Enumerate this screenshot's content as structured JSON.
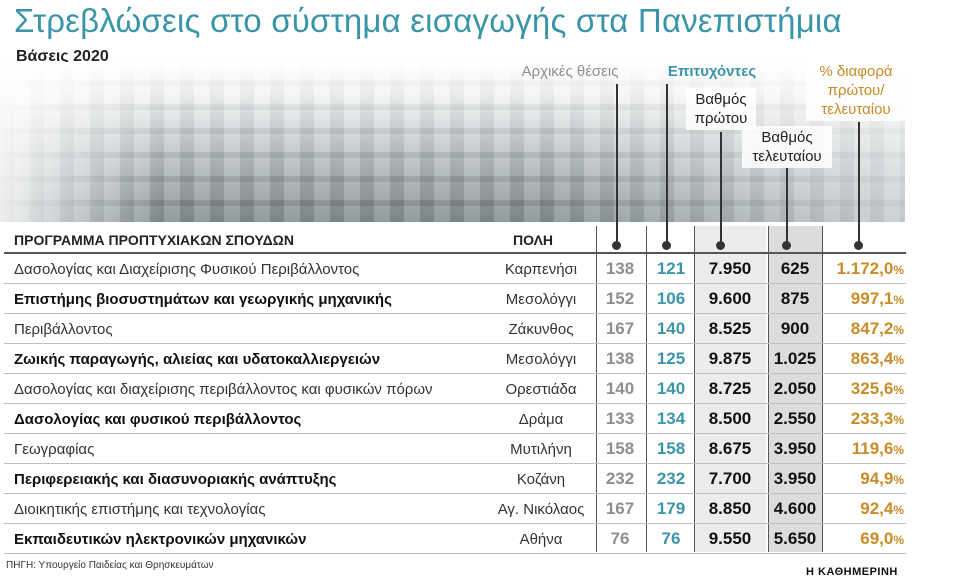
{
  "title": "Στρεβλώσεις στο σύστημα εισαγωγής στα Πανεπιστήμια",
  "subtitle": "Βάσεις 2020",
  "headers": {
    "initial_positions": "Αρχικές θέσεις",
    "successful": "Επιτυχόντες",
    "first_score": [
      "Βαθμός",
      "πρώτου"
    ],
    "last_score": [
      "Βαθμός",
      "τελευταίου"
    ],
    "diff_pct": [
      "% διαφορά",
      "πρώτου/",
      "τελευταίου"
    ],
    "program": "ΠΡΟΓΡΑΜΜΑ ΠΡΟΠΤΥΧΙΑΚΩΝ ΣΠΟΥΔΩΝ",
    "city": "ΠΟΛΗ"
  },
  "rows": [
    {
      "program": "Δασολογίας και Διαχείρισης Φυσικού Περιβάλλοντος",
      "city": "Καρπενήσι",
      "initial": "138",
      "successful": "121",
      "first": "7.950",
      "last": "625",
      "diff": "1.172,0",
      "bold": false
    },
    {
      "program": "Επιστήμης βιοσυστημάτων και γεωργικής μηχανικής",
      "city": "Μεσολόγγι",
      "initial": "152",
      "successful": "106",
      "first": "9.600",
      "last": "875",
      "diff": "997,1",
      "bold": true
    },
    {
      "program": "Περιβάλλοντος",
      "city": "Ζάκυνθος",
      "initial": "167",
      "successful": "140",
      "first": "8.525",
      "last": "900",
      "diff": "847,2",
      "bold": false
    },
    {
      "program": "Ζωικής παραγωγής, αλιείας και υδατοκαλλιεργειών",
      "city": "Μεσολόγγι",
      "initial": "138",
      "successful": "125",
      "first": "9.875",
      "last": "1.025",
      "diff": "863,4",
      "bold": true
    },
    {
      "program": "Δασολογίας και διαχείρισης περιβάλλοντος και φυσικών πόρων",
      "city": "Ορεστιάδα",
      "initial": "140",
      "successful": "140",
      "first": "8.725",
      "last": "2.050",
      "diff": "325,6",
      "bold": false
    },
    {
      "program": "Δασολογίας και φυσικού περιβάλλοντος",
      "city": "Δράμα",
      "initial": "133",
      "successful": "134",
      "first": "8.500",
      "last": "2.550",
      "diff": "233,3",
      "bold": true
    },
    {
      "program": "Γεωγραφίας",
      "city": "Μυτιλήνη",
      "initial": "158",
      "successful": "158",
      "first": "8.675",
      "last": "3.950",
      "diff": "119,6",
      "bold": false
    },
    {
      "program": "Περιφερειακής και διασυνοριακής ανάπτυξης",
      "city": "Κοζάνη",
      "initial": "232",
      "successful": "232",
      "first": "7.700",
      "last": "3.950",
      "diff": "94,9",
      "bold": true
    },
    {
      "program": "Διοικητικής επιστήμης και τεχνολογίας",
      "city": "Αγ. Νικόλαος",
      "initial": "167",
      "successful": "179",
      "first": "8.850",
      "last": "4.600",
      "diff": "92,4",
      "bold": false
    },
    {
      "program": "Εκπαιδευτικών ηλεκτρονικών μηχανικών",
      "city": "Αθήνα",
      "initial": "76",
      "successful": "76",
      "first": "9.550",
      "last": "5.650",
      "diff": "69,0",
      "bold": true
    }
  ],
  "percent_sign": "%",
  "source": "ΠΗΓΗ: Υπουργείο Παιδείας και Θρησκευμάτων",
  "brand": "Η ΚΑΘΗΜΕΡΙΝΗ",
  "colors": {
    "teal": "#3b95a8",
    "orange": "#c98b25",
    "grey": "#8f8f8f"
  }
}
